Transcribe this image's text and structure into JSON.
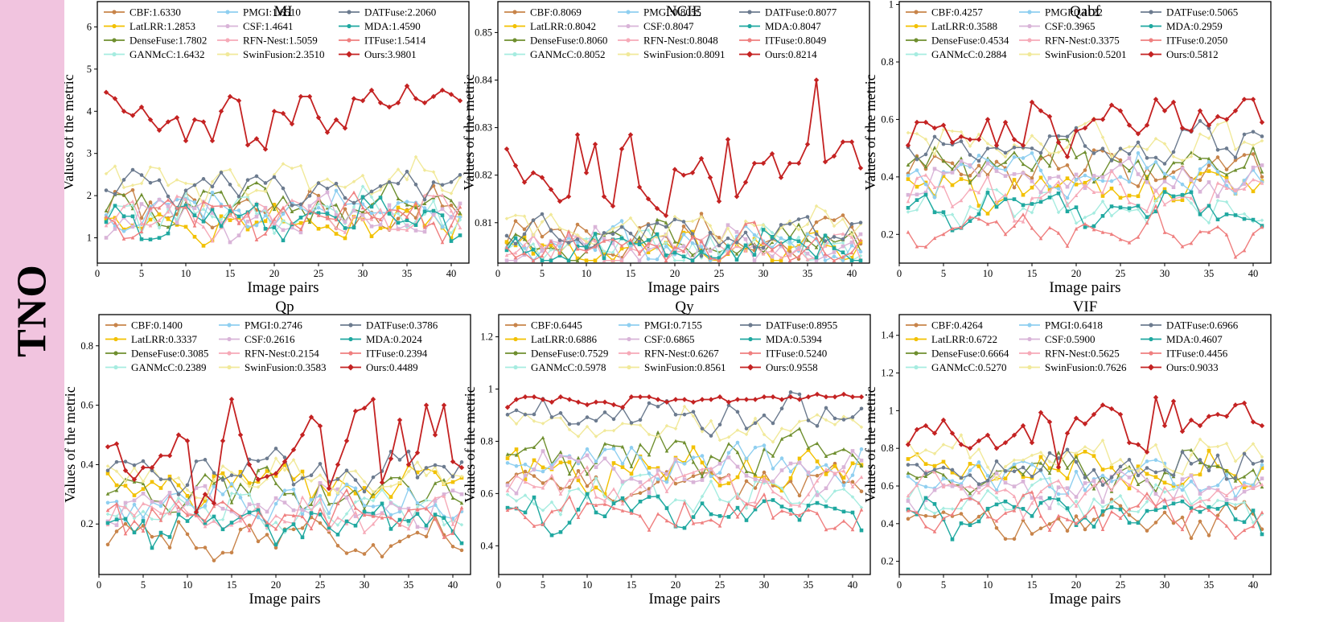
{
  "row_label": "TNO",
  "colors": {
    "band": "#f1c4df",
    "series": {
      "CBF": "#c8844a",
      "LatLRR": "#f2c100",
      "DenseFuse": "#6f8f2f",
      "GANMcC": "#a6ece0",
      "PMGI": "#8fcff0",
      "CSF": "#d9b4d8",
      "RFN-Nest": "#f6aab8",
      "SwinFusion": "#f1e99a",
      "DATFuse": "#6c7b8f",
      "MDA": "#1fa8a0",
      "ITFuse": "#ef7f7f",
      "Ours": "#c42222"
    }
  },
  "x_pairs": [
    1,
    2,
    3,
    4,
    5,
    6,
    7,
    8,
    9,
    10,
    11,
    12,
    13,
    14,
    15,
    16,
    17,
    18,
    19,
    20,
    21,
    22,
    23,
    24,
    25,
    26,
    27,
    28,
    29,
    30,
    31,
    32,
    33,
    34,
    35,
    36,
    37,
    38,
    39,
    40,
    41
  ],
  "chart_data": [
    {
      "type": "line",
      "title": "MI",
      "xlabel": "Image pairs",
      "ylabel": "Values of the metric",
      "xlim": [
        0,
        42
      ],
      "ylim": [
        0.4,
        6.6
      ],
      "xticks": [
        0,
        5,
        10,
        15,
        20,
        25,
        30,
        35,
        40
      ],
      "yticks": [
        1,
        2,
        3,
        4,
        5,
        6
      ],
      "legend": [
        "CBF:1.6330",
        "PMGI:1.6510",
        "DATFuse:2.2060",
        "LatLRR:1.2853",
        "CSF:1.4641",
        "MDA:1.4590",
        "DenseFuse:1.7802",
        "RFN-Nest:1.5059",
        "ITFuse:1.5414",
        "GANMcC:1.6432",
        "SwinFusion:2.3510",
        "Ours:3.9801"
      ],
      "series": [
        {
          "name": "CBF",
          "mean": 1.633
        },
        {
          "name": "LatLRR",
          "mean": 1.2853
        },
        {
          "name": "DenseFuse",
          "mean": 1.7802
        },
        {
          "name": "GANMcC",
          "mean": 1.6432
        },
        {
          "name": "PMGI",
          "mean": 1.651
        },
        {
          "name": "CSF",
          "mean": 1.4641
        },
        {
          "name": "RFN-Nest",
          "mean": 1.5059
        },
        {
          "name": "SwinFusion",
          "mean": 2.351
        },
        {
          "name": "DATFuse",
          "mean": 2.206
        },
        {
          "name": "MDA",
          "mean": 1.459
        },
        {
          "name": "ITFuse",
          "mean": 1.5414
        },
        {
          "name": "Ours",
          "mean": 3.9801,
          "values": [
            4.45,
            4.3,
            4.0,
            3.9,
            4.1,
            3.8,
            3.55,
            3.75,
            3.85,
            3.3,
            3.8,
            3.75,
            3.3,
            4.0,
            4.35,
            4.25,
            3.2,
            3.35,
            3.1,
            4.0,
            3.95,
            3.7,
            4.35,
            4.35,
            3.85,
            3.5,
            3.8,
            3.6,
            4.3,
            4.25,
            4.5,
            4.2,
            4.1,
            4.2,
            4.6,
            4.3,
            4.2,
            4.35,
            4.5,
            4.4,
            4.25
          ]
        }
      ]
    },
    {
      "type": "line",
      "title": "NCIE",
      "xlabel": "Image pairs",
      "ylabel": "Values of the metric",
      "xlim": [
        0,
        42
      ],
      "ylim": [
        0.8015,
        0.8565
      ],
      "xticks": [
        0,
        5,
        10,
        15,
        20,
        25,
        30,
        35,
        40
      ],
      "yticks": [
        0.81,
        0.82,
        0.83,
        0.84,
        0.85
      ],
      "legend": [
        "CBF:0.8069",
        "PMGI:0.8055",
        "DATFuse:0.8077",
        "LatLRR:0.8042",
        "CSF:0.8047",
        "MDA:0.8047",
        "DenseFuse:0.8060",
        "RFN-Nest:0.8048",
        "ITFuse:0.8049",
        "GANMcC:0.8052",
        "SwinFusion:0.8091",
        "Ours:0.8214"
      ],
      "series": [
        {
          "name": "CBF",
          "mean": 0.8069
        },
        {
          "name": "LatLRR",
          "mean": 0.8042
        },
        {
          "name": "DenseFuse",
          "mean": 0.806
        },
        {
          "name": "GANMcC",
          "mean": 0.8052
        },
        {
          "name": "PMGI",
          "mean": 0.8055
        },
        {
          "name": "CSF",
          "mean": 0.8047
        },
        {
          "name": "RFN-Nest",
          "mean": 0.8048
        },
        {
          "name": "SwinFusion",
          "mean": 0.8091
        },
        {
          "name": "DATFuse",
          "mean": 0.8077
        },
        {
          "name": "MDA",
          "mean": 0.8047
        },
        {
          "name": "ITFuse",
          "mean": 0.8049
        },
        {
          "name": "Ours",
          "mean": 0.8214,
          "values": [
            0.8255,
            0.822,
            0.8185,
            0.8205,
            0.8195,
            0.817,
            0.8145,
            0.8155,
            0.8285,
            0.8205,
            0.8265,
            0.8155,
            0.8135,
            0.8255,
            0.8285,
            0.8175,
            0.815,
            0.813,
            0.8115,
            0.8212,
            0.82,
            0.8205,
            0.8235,
            0.8195,
            0.8145,
            0.8275,
            0.8155,
            0.8185,
            0.8225,
            0.8225,
            0.8245,
            0.8195,
            0.8225,
            0.8225,
            0.8265,
            0.84,
            0.8228,
            0.824,
            0.827,
            0.827,
            0.8215
          ]
        }
      ]
    },
    {
      "type": "line",
      "title": "Qabf",
      "xlabel": "Image pairs",
      "ylabel": "Values of the metric",
      "xlim": [
        0,
        42
      ],
      "ylim": [
        0.1,
        1.01
      ],
      "xticks": [
        0,
        5,
        10,
        15,
        20,
        25,
        30,
        35,
        40
      ],
      "yticks": [
        0.2,
        0.4,
        0.6,
        0.8,
        1.0
      ],
      "legend": [
        "CBF:0.4257",
        "PMGI:0.4122",
        "DATFuse:0.5065",
        "LatLRR:0.3588",
        "CSF:0.3965",
        "MDA:0.2959",
        "DenseFuse:0.4534",
        "RFN-Nest:0.3375",
        "ITFuse:0.2050",
        "GANMcC:0.2884",
        "SwinFusion:0.5201",
        "Ours:0.5812"
      ],
      "series": [
        {
          "name": "CBF",
          "mean": 0.4257
        },
        {
          "name": "LatLRR",
          "mean": 0.3588
        },
        {
          "name": "DenseFuse",
          "mean": 0.4534
        },
        {
          "name": "GANMcC",
          "mean": 0.2884
        },
        {
          "name": "PMGI",
          "mean": 0.4122
        },
        {
          "name": "CSF",
          "mean": 0.3965
        },
        {
          "name": "RFN-Nest",
          "mean": 0.3375
        },
        {
          "name": "SwinFusion",
          "mean": 0.5201
        },
        {
          "name": "DATFuse",
          "mean": 0.5065
        },
        {
          "name": "MDA",
          "mean": 0.2959
        },
        {
          "name": "ITFuse",
          "mean": 0.205
        },
        {
          "name": "Ours",
          "mean": 0.5812,
          "values": [
            0.51,
            0.59,
            0.59,
            0.57,
            0.58,
            0.52,
            0.54,
            0.53,
            0.53,
            0.6,
            0.51,
            0.59,
            0.53,
            0.51,
            0.66,
            0.63,
            0.61,
            0.52,
            0.47,
            0.56,
            0.57,
            0.6,
            0.6,
            0.65,
            0.63,
            0.58,
            0.55,
            0.58,
            0.67,
            0.63,
            0.66,
            0.57,
            0.56,
            0.63,
            0.58,
            0.61,
            0.6,
            0.63,
            0.67,
            0.67,
            0.59
          ]
        }
      ]
    },
    {
      "type": "line",
      "title": "Qp",
      "xlabel": "Image pairs",
      "ylabel": "Values of the metric",
      "xlim": [
        0,
        42
      ],
      "ylim": [
        0.03,
        0.905
      ],
      "xticks": [
        0,
        5,
        10,
        15,
        20,
        25,
        30,
        35,
        40
      ],
      "yticks": [
        0.2,
        0.4,
        0.6,
        0.8
      ],
      "legend": [
        "CBF:0.1400",
        "PMGI:0.2746",
        "DATFuse:0.3786",
        "LatLRR:0.3337",
        "CSF:0.2616",
        "MDA:0.2024",
        "DenseFuse:0.3085",
        "RFN-Nest:0.2154",
        "ITFuse:0.2394",
        "GANMcC:0.2389",
        "SwinFusion:0.3583",
        "Ours:0.4489"
      ],
      "series": [
        {
          "name": "CBF",
          "mean": 0.14
        },
        {
          "name": "LatLRR",
          "mean": 0.3337
        },
        {
          "name": "DenseFuse",
          "mean": 0.3085
        },
        {
          "name": "GANMcC",
          "mean": 0.2389
        },
        {
          "name": "PMGI",
          "mean": 0.2746
        },
        {
          "name": "CSF",
          "mean": 0.2616
        },
        {
          "name": "RFN-Nest",
          "mean": 0.2154
        },
        {
          "name": "SwinFusion",
          "mean": 0.3583
        },
        {
          "name": "DATFuse",
          "mean": 0.3786
        },
        {
          "name": "MDA",
          "mean": 0.2024
        },
        {
          "name": "ITFuse",
          "mean": 0.2394
        },
        {
          "name": "Ours",
          "mean": 0.4489,
          "values": [
            0.46,
            0.47,
            0.38,
            0.35,
            0.39,
            0.39,
            0.43,
            0.43,
            0.5,
            0.48,
            0.24,
            0.3,
            0.27,
            0.48,
            0.62,
            0.5,
            0.4,
            0.35,
            0.36,
            0.37,
            0.41,
            0.45,
            0.5,
            0.56,
            0.53,
            0.32,
            0.4,
            0.48,
            0.58,
            0.59,
            0.62,
            0.34,
            0.42,
            0.55,
            0.4,
            0.44,
            0.6,
            0.5,
            0.6,
            0.41,
            0.39
          ]
        }
      ]
    },
    {
      "type": "line",
      "title": "Qy",
      "xlabel": "Image pairs",
      "ylabel": "Values of the metric",
      "xlim": [
        0,
        42
      ],
      "ylim": [
        0.29,
        1.285
      ],
      "xticks": [
        0,
        5,
        10,
        15,
        20,
        25,
        30,
        35,
        40
      ],
      "yticks": [
        0.4,
        0.6,
        0.8,
        1.0,
        1.2
      ],
      "legend": [
        "CBF:0.6445",
        "PMGI:0.7155",
        "DATFuse:0.8955",
        "LatLRR:0.6886",
        "CSF:0.6865",
        "MDA:0.5394",
        "DenseFuse:0.7529",
        "RFN-Nest:0.6267",
        "ITFuse:0.5240",
        "GANMcC:0.5978",
        "SwinFusion:0.8561",
        "Ours:0.9558"
      ],
      "series": [
        {
          "name": "CBF",
          "mean": 0.6445
        },
        {
          "name": "LatLRR",
          "mean": 0.6886
        },
        {
          "name": "DenseFuse",
          "mean": 0.7529
        },
        {
          "name": "GANMcC",
          "mean": 0.5978
        },
        {
          "name": "PMGI",
          "mean": 0.7155
        },
        {
          "name": "CSF",
          "mean": 0.6865
        },
        {
          "name": "RFN-Nest",
          "mean": 0.6267
        },
        {
          "name": "SwinFusion",
          "mean": 0.8561
        },
        {
          "name": "DATFuse",
          "mean": 0.8955
        },
        {
          "name": "MDA",
          "mean": 0.5394
        },
        {
          "name": "ITFuse",
          "mean": 0.524
        },
        {
          "name": "Ours",
          "mean": 0.9558,
          "values": [
            0.93,
            0.96,
            0.97,
            0.97,
            0.96,
            0.95,
            0.97,
            0.96,
            0.95,
            0.94,
            0.95,
            0.95,
            0.94,
            0.93,
            0.97,
            0.97,
            0.97,
            0.96,
            0.95,
            0.96,
            0.96,
            0.95,
            0.96,
            0.96,
            0.97,
            0.95,
            0.96,
            0.96,
            0.96,
            0.97,
            0.97,
            0.96,
            0.97,
            0.96,
            0.97,
            0.98,
            0.97,
            0.97,
            0.98,
            0.97,
            0.97
          ]
        }
      ]
    },
    {
      "type": "line",
      "title": "VIF",
      "xlabel": "Image pairs",
      "ylabel": "Values of the metric",
      "xlim": [
        0,
        42
      ],
      "ylim": [
        0.13,
        1.51
      ],
      "xticks": [
        0,
        5,
        10,
        15,
        20,
        25,
        30,
        35,
        40
      ],
      "yticks": [
        0.2,
        0.4,
        0.6,
        0.8,
        1.0,
        1.2,
        1.4
      ],
      "legend": [
        "CBF:0.4264",
        "PMGI:0.6418",
        "DATFuse:0.6966",
        "LatLRR:0.6722",
        "CSF:0.5900",
        "MDA:0.4607",
        "DenseFuse:0.6664",
        "RFN-Nest:0.5625",
        "ITFuse:0.4456",
        "GANMcC:0.5270",
        "SwinFusion:0.7626",
        "Ours:0.9033"
      ],
      "series": [
        {
          "name": "CBF",
          "mean": 0.4264
        },
        {
          "name": "LatLRR",
          "mean": 0.6722
        },
        {
          "name": "DenseFuse",
          "mean": 0.6664
        },
        {
          "name": "GANMcC",
          "mean": 0.527
        },
        {
          "name": "PMGI",
          "mean": 0.6418
        },
        {
          "name": "CSF",
          "mean": 0.59
        },
        {
          "name": "RFN-Nest",
          "mean": 0.5625
        },
        {
          "name": "SwinFusion",
          "mean": 0.7626
        },
        {
          "name": "DATFuse",
          "mean": 0.6966
        },
        {
          "name": "MDA",
          "mean": 0.4607
        },
        {
          "name": "ITFuse",
          "mean": 0.4456
        },
        {
          "name": "Ours",
          "mean": 0.9033,
          "values": [
            0.82,
            0.9,
            0.92,
            0.88,
            0.95,
            0.88,
            0.82,
            0.8,
            0.84,
            0.87,
            0.8,
            0.83,
            0.87,
            0.92,
            0.83,
            0.99,
            0.94,
            0.7,
            0.88,
            0.96,
            0.93,
            0.98,
            1.03,
            1.01,
            0.98,
            0.83,
            0.82,
            0.78,
            1.07,
            0.92,
            1.05,
            0.89,
            0.95,
            0.92,
            0.97,
            0.98,
            0.97,
            1.03,
            1.04,
            0.94,
            0.92
          ]
        }
      ]
    }
  ]
}
